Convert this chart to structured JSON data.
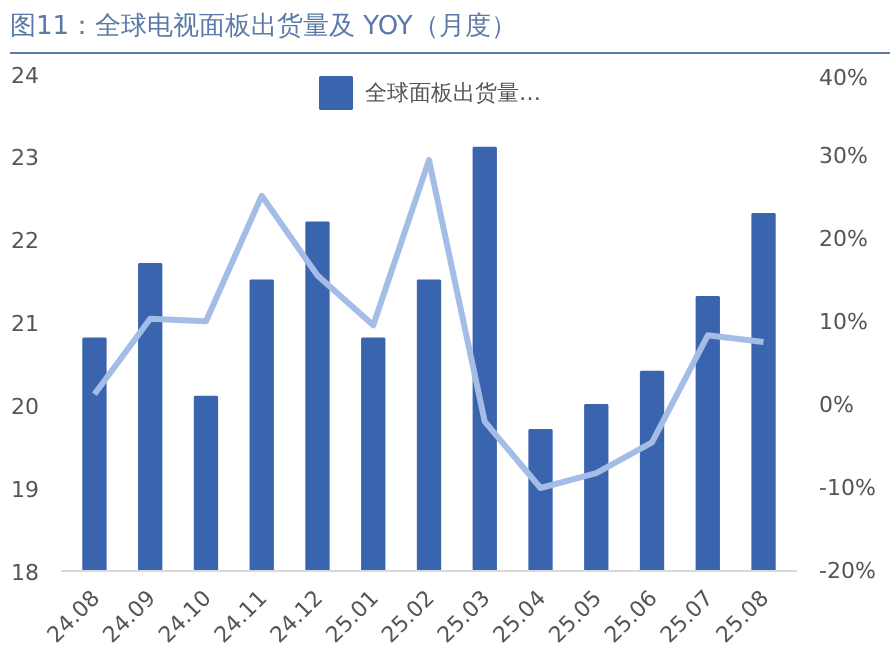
{
  "chart_data": {
    "type": "bar",
    "title": "图11：全球电视面板出货量及 YOY（月度）",
    "categories": [
      "24.08",
      "24.09",
      "24.10",
      "24.11",
      "24.12",
      "25.01",
      "25.02",
      "25.03",
      "25.04",
      "25.05",
      "25.06",
      "25.07",
      "25.08"
    ],
    "series": [
      {
        "name": "全球面板出货量…",
        "color": "#3a64ae",
        "values": [
          20.8,
          21.7,
          20.1,
          21.5,
          22.2,
          20.8,
          21.5,
          23.1,
          19.7,
          20.0,
          20.4,
          21.3,
          22.3
        ]
      },
      {
        "type": "line",
        "axis": "y2",
        "color": "#a4bde6",
        "values": [
          1.3,
          10.4,
          10.1,
          25.2,
          15.6,
          9.6,
          29.5,
          -2,
          -10,
          -8.2,
          -4.5,
          8.4,
          7.6
        ]
      }
    ],
    "ylim": [
      18,
      24
    ],
    "yticks": [
      18,
      19,
      20,
      21,
      22,
      23,
      24
    ],
    "y2lim": [
      -20,
      40
    ],
    "y2ticks": [
      {
        "value": -20,
        "label": "-20%"
      },
      {
        "value": -10,
        "label": "-10%"
      },
      {
        "value": 0,
        "label": "0%"
      },
      {
        "value": 10,
        "label": "10%"
      },
      {
        "value": 20,
        "label": "20%"
      },
      {
        "value": 30,
        "label": "30%"
      },
      {
        "value": 40,
        "label": "40%"
      }
    ],
    "legend": "top",
    "grid": false
  }
}
